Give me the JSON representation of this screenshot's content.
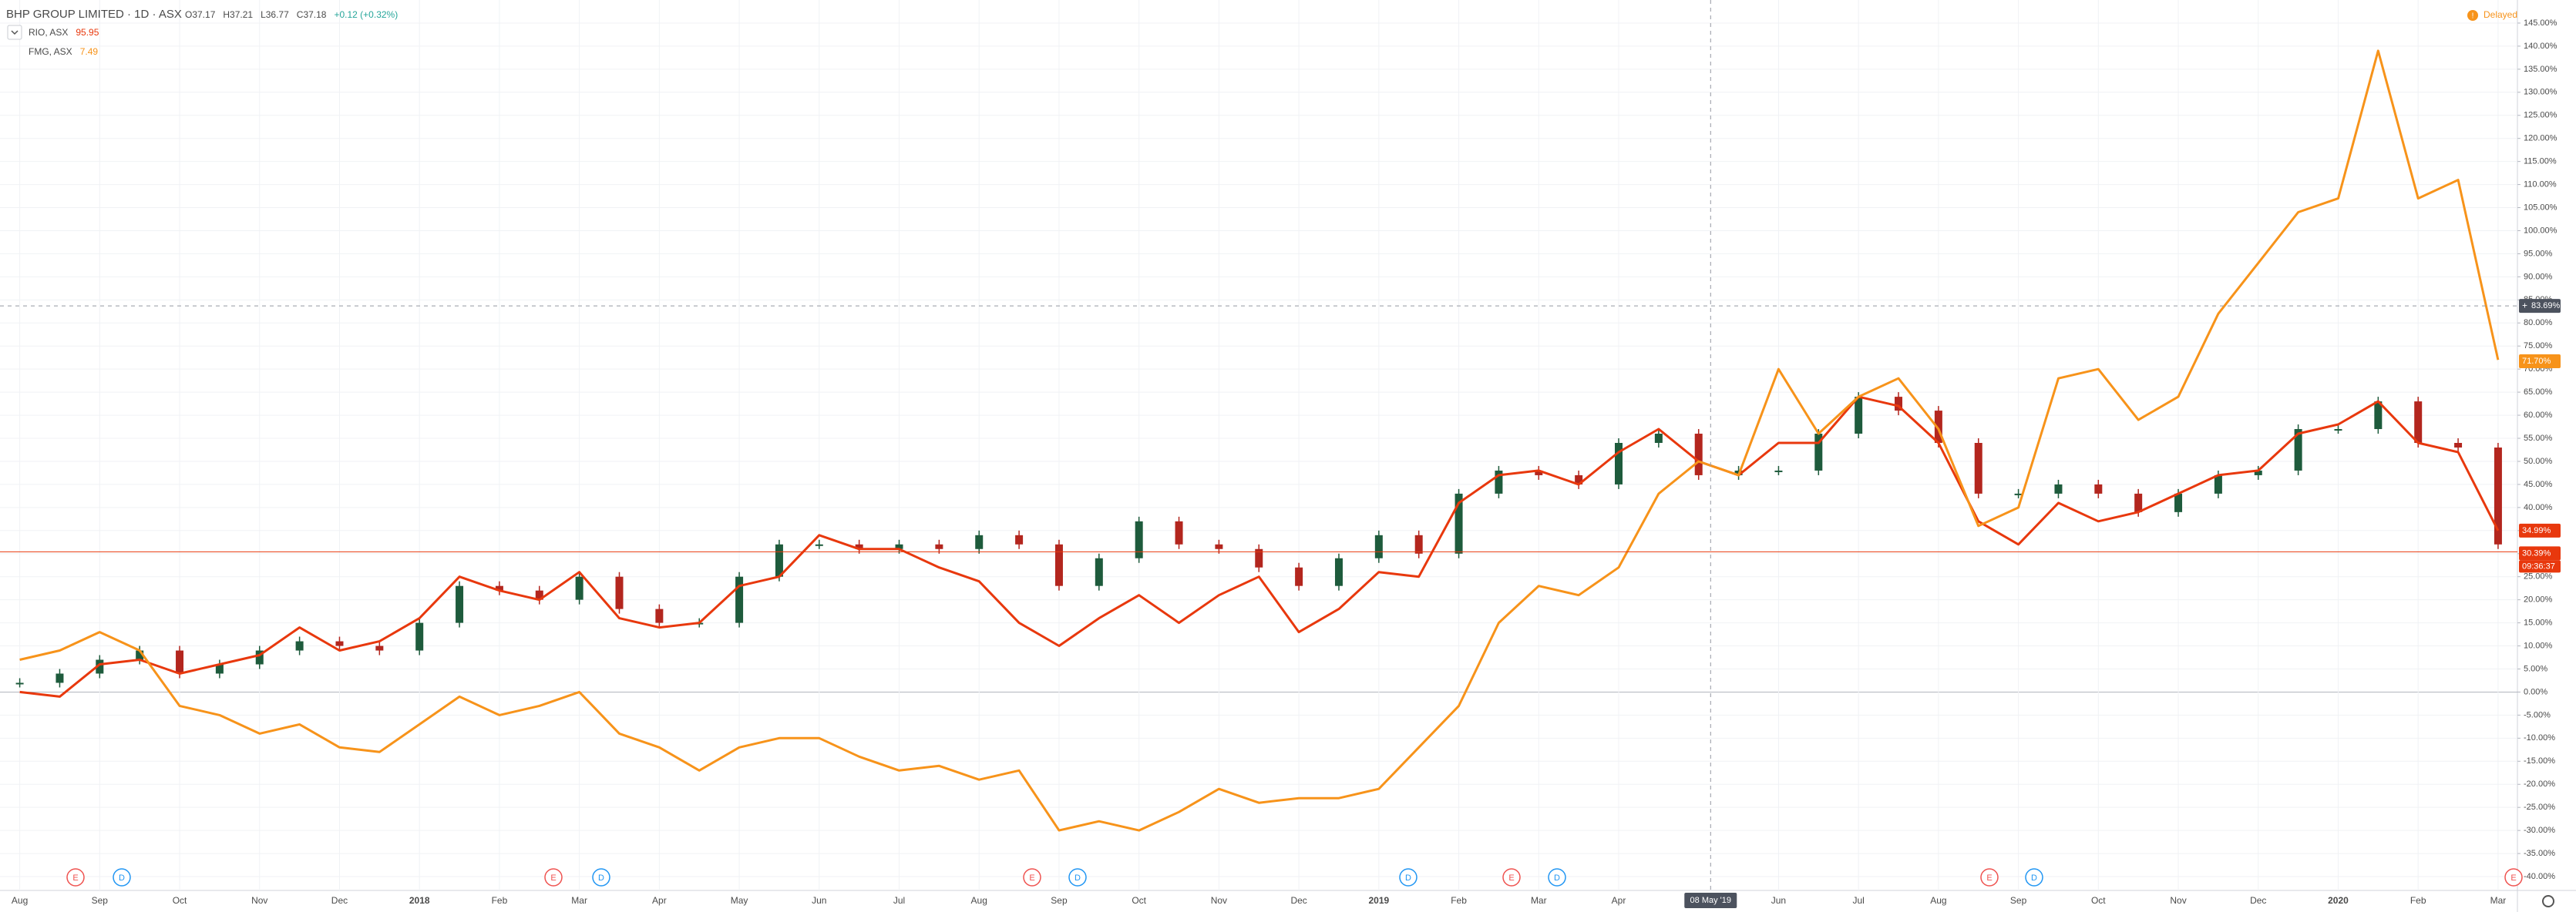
{
  "chart_data": {
    "type": "candlestick-line",
    "header": [
      "O37.17",
      "H37.21",
      "L36.77",
      "C37.18",
      "+0.12 (+0.32%)"
    ],
    "status": "Delayed",
    "categories": [
      "Aug",
      null,
      "Sep",
      null,
      "Oct",
      null,
      "Nov",
      null,
      "Dec",
      null,
      "2018",
      null,
      "Feb",
      null,
      "Mar",
      null,
      "Apr",
      null,
      "May",
      null,
      "Jun",
      null,
      "Jul",
      null,
      "Aug",
      null,
      "Sep",
      null,
      "Oct",
      null,
      "Nov",
      null,
      "Dec",
      null,
      "2019",
      null,
      "Feb",
      null,
      "Mar",
      null,
      "Apr",
      null,
      null,
      null,
      "Jun",
      null,
      "Jul",
      null,
      "Aug",
      null,
      "Sep",
      null,
      "Oct",
      null,
      "Nov",
      null,
      "Dec",
      null,
      "2020",
      null,
      "Feb",
      null,
      "Mar"
    ],
    "series": [
      {
        "name": "BHP GROUP LIMITED · 1D · ASX",
        "style": "candles",
        "up_color": "#1e5b3c",
        "down_color": "#b3261e",
        "values": [
          2,
          4,
          7,
          9,
          4,
          6,
          9,
          11,
          10,
          9,
          15,
          23,
          22,
          20,
          25,
          18,
          15,
          15,
          25,
          32,
          32,
          31,
          32,
          31,
          34,
          32,
          23,
          29,
          37,
          32,
          31,
          27,
          23,
          29,
          34,
          30,
          43,
          48,
          47,
          45,
          54,
          56,
          47,
          48,
          48,
          56,
          64,
          61,
          54,
          43,
          43,
          45,
          43,
          39,
          43,
          47,
          48,
          57,
          57,
          63,
          54,
          53,
          32
        ],
        "last": {
          "value": 30.39,
          "label": "30.39%"
        },
        "countdown": "09:36:37"
      },
      {
        "name": "RIO, ASX",
        "price": 95.95,
        "style": "line",
        "color": "#e8380d",
        "values": [
          0,
          -1,
          6,
          7,
          4,
          6,
          8,
          14,
          9,
          11,
          16,
          25,
          22,
          20,
          26,
          16,
          14,
          15,
          23,
          25,
          34,
          31,
          31,
          27,
          24,
          15,
          10,
          16,
          21,
          15,
          21,
          25,
          13,
          18,
          26,
          25,
          41,
          47,
          48,
          45,
          52,
          57,
          50,
          47,
          54,
          54,
          64,
          62,
          54,
          37,
          32,
          41,
          37,
          39,
          43,
          47,
          48,
          56,
          58,
          63,
          54,
          52,
          35
        ],
        "last": {
          "value": 34.99,
          "label": "34.99%"
        }
      },
      {
        "name": "FMG, ASX",
        "price": 7.49,
        "style": "line",
        "color": "#f7931a",
        "values": [
          7,
          9,
          13,
          9,
          -3,
          -5,
          -9,
          -7,
          -12,
          -13,
          -7,
          -1,
          -5,
          -3,
          0,
          -9,
          -12,
          -17,
          -12,
          -10,
          -10,
          -14,
          -17,
          -16,
          -19,
          -17,
          -30,
          -28,
          -30,
          -26,
          -21,
          -24,
          -23,
          -23,
          -21,
          -12,
          -3,
          15,
          23,
          21,
          27,
          43,
          50,
          47,
          70,
          56,
          64,
          68,
          57,
          36,
          40,
          68,
          70,
          59,
          64,
          82,
          93,
          104,
          107,
          139,
          107,
          111,
          72
        ],
        "last": {
          "value": 71.7,
          "label": "71.70%"
        }
      }
    ],
    "ylim": [
      -43,
      150
    ],
    "yticks": [
      {
        "value": -40,
        "label": "-40.00%"
      },
      {
        "value": -35,
        "label": "-35.00%"
      },
      {
        "value": -30,
        "label": "-30.00%"
      },
      {
        "value": -25,
        "label": "-25.00%"
      },
      {
        "value": -20,
        "label": "-20.00%"
      },
      {
        "value": -15,
        "label": "-15.00%"
      },
      {
        "value": -10,
        "label": "-10.00%"
      },
      {
        "value": -5,
        "label": "-5.00%"
      },
      {
        "value": 0,
        "label": "0.00%"
      },
      {
        "value": 5,
        "label": "5.00%"
      },
      {
        "value": 10,
        "label": "10.00%"
      },
      {
        "value": 15,
        "label": "15.00%"
      },
      {
        "value": 20,
        "label": "20.00%"
      },
      {
        "value": 25,
        "label": "25.00%"
      },
      {
        "value": 30,
        "label": "30.00%"
      },
      {
        "value": 35,
        "label": "35.00%"
      },
      {
        "value": 40,
        "label": "40.00%"
      },
      {
        "value": 45,
        "label": "45.00%"
      },
      {
        "value": 50,
        "label": "50.00%"
      },
      {
        "value": 55,
        "label": "55.00%"
      },
      {
        "value": 60,
        "label": "60.00%"
      },
      {
        "value": 65,
        "label": "65.00%"
      },
      {
        "value": 70,
        "label": "70.00%"
      },
      {
        "value": 75,
        "label": "75.00%"
      },
      {
        "value": 80,
        "label": "80.00%"
      },
      {
        "value": 85,
        "label": "85.00%"
      },
      {
        "value": 90,
        "label": "90.00%"
      },
      {
        "value": 95,
        "label": "95.00%"
      },
      {
        "value": 100,
        "label": "100.00%"
      },
      {
        "value": 105,
        "label": "105.00%"
      },
      {
        "value": 110,
        "label": "110.00%"
      },
      {
        "value": 115,
        "label": "115.00%"
      },
      {
        "value": 120,
        "label": "120.00%"
      },
      {
        "value": 125,
        "label": "125.00%"
      },
      {
        "value": 130,
        "label": "130.00%"
      },
      {
        "value": 135,
        "label": "135.00%"
      },
      {
        "value": 140,
        "label": "140.00%"
      },
      {
        "value": 145,
        "label": "145.00%"
      }
    ],
    "grid": true,
    "crosshair": {
      "x_label": "08 May '19",
      "y": {
        "value": 83.69,
        "label": "83.69%"
      }
    },
    "events": [
      "E",
      "D",
      "E",
      "D",
      "E",
      "D",
      "D",
      "E",
      "D",
      "E",
      "D",
      "E"
    ]
  }
}
